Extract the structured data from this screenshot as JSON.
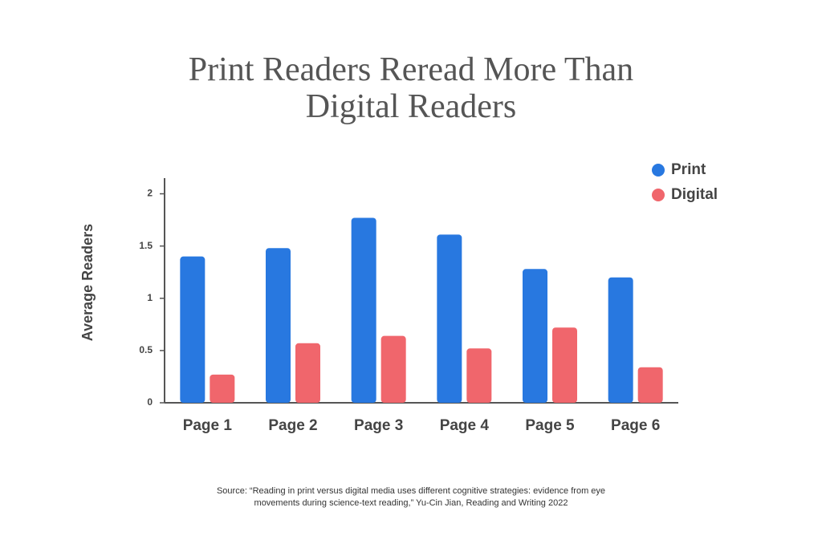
{
  "chart_data": {
    "type": "bar",
    "title": "Print Readers Reread More Than Digital Readers",
    "y_label": "Average Readers",
    "categories": [
      "Page 1",
      "Page 2",
      "Page 3",
      "Page 4",
      "Page 5",
      "Page 6"
    ],
    "series": [
      {
        "name": "Print",
        "color": "#2878e0",
        "values": [
          1.4,
          1.48,
          1.77,
          1.61,
          1.28,
          1.2
        ]
      },
      {
        "name": "Digital",
        "color": "#f0666c",
        "values": [
          0.27,
          0.57,
          0.64,
          0.52,
          0.72,
          0.34
        ]
      }
    ],
    "ylim": [
      0,
      2.15
    ],
    "yticks": [
      0,
      0.5,
      1,
      1.5,
      2
    ],
    "legend": "upper right",
    "source": "Source: “Reading in print versus digital media uses different cognitive strategies: evidence from eye movements during science-text reading,” Yu-Cin Jian, Reading and Writing 2022"
  }
}
